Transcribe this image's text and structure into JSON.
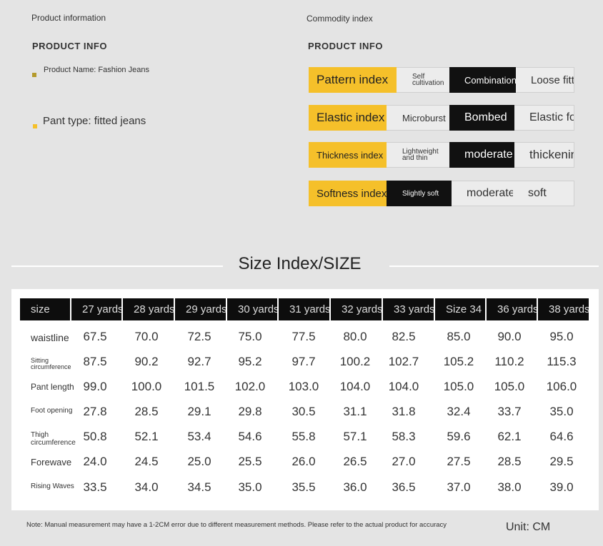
{
  "left_section": {
    "heading": "Product information",
    "subheading": "PRODUCT INFO",
    "items": [
      {
        "text": "Product Name: Fashion Jeans",
        "bullet_color": "#b49a2c"
      },
      {
        "text": "Pant type: fitted jeans",
        "bullet_color": "#f5c02a"
      }
    ]
  },
  "right_section": {
    "heading": "Commodity index",
    "subheading": "PRODUCT INFO",
    "rows": [
      {
        "label": "Pattern index",
        "options": [
          "Self cultivation",
          "Combination",
          "Loose fitting"
        ],
        "selected": 1
      },
      {
        "label": "Elastic index",
        "options": [
          "Microburst",
          "Bombed",
          "Elastic force"
        ],
        "selected": 1
      },
      {
        "label": "Thickness index",
        "options": [
          "Lightweight and thin",
          "moderate",
          "thickening"
        ],
        "selected": 1
      },
      {
        "label": "Softness index",
        "options": [
          "Slightly soft",
          "moderate",
          "soft"
        ],
        "selected": 0
      }
    ]
  },
  "size_section": {
    "title": "Size Index/SIZE",
    "columns": [
      "size",
      "27 yards",
      "28 yards",
      "29 yards",
      "30 yards",
      "31 yards",
      "32 yards",
      "33 yards",
      "Size 34",
      "36 yards",
      "38 yards"
    ],
    "rows": [
      {
        "label": "waistline",
        "values": [
          "67.5",
          "70.0",
          "72.5",
          "75.0",
          "77.5",
          "80.0",
          "82.5",
          "85.0",
          "90.0",
          "95.0"
        ]
      },
      {
        "label": "Sitting circumference",
        "values": [
          "87.5",
          "90.2",
          "92.7",
          "95.2",
          "97.7",
          "100.2",
          "102.7",
          "105.2",
          "110.2",
          "115.3"
        ]
      },
      {
        "label": "Pant length",
        "values": [
          "99.0",
          "100.0",
          "101.5",
          "102.0",
          "103.0",
          "104.0",
          "104.0",
          "105.0",
          "105.0",
          "106.0"
        ]
      },
      {
        "label": "Foot opening",
        "values": [
          "27.8",
          "28.5",
          "29.1",
          "29.8",
          "30.5",
          "31.1",
          "31.8",
          "32.4",
          "33.7",
          "35.0"
        ]
      },
      {
        "label": "Thigh circumference",
        "values": [
          "50.8",
          "52.1",
          "53.4",
          "54.6",
          "55.8",
          "57.1",
          "58.3",
          "59.6",
          "62.1",
          "64.6"
        ]
      },
      {
        "label": "Forewave",
        "values": [
          "24.0",
          "24.5",
          "25.0",
          "25.5",
          "26.0",
          "26.5",
          "27.0",
          "27.5",
          "28.5",
          "29.5"
        ]
      },
      {
        "label": "Rising Waves",
        "values": [
          "33.5",
          "34.0",
          "34.5",
          "35.0",
          "35.5",
          "36.0",
          "36.5",
          "37.0",
          "38.0",
          "39.0"
        ]
      }
    ]
  },
  "footer": {
    "note": "Note: Manual measurement may have a 1-2CM error due to different measurement methods. Please refer to the actual product for accuracy",
    "unit": "Unit: CM"
  }
}
